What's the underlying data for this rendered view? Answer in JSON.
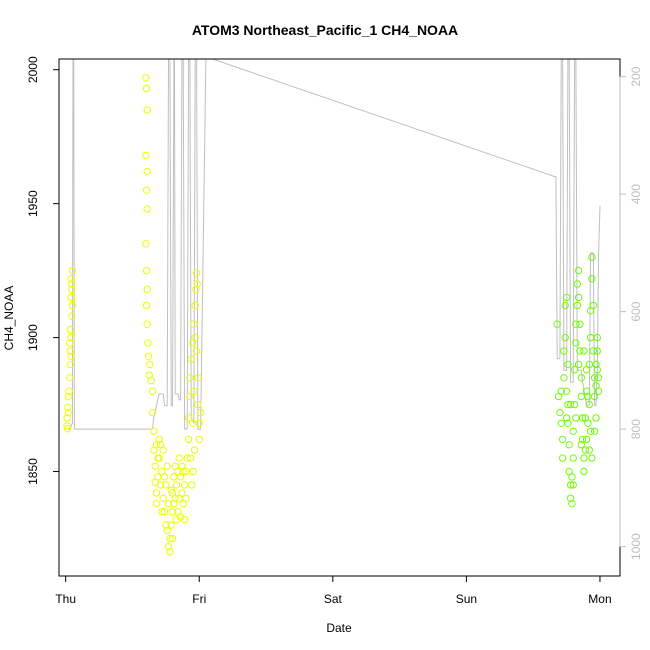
{
  "chart_data": {
    "type": "scatter",
    "title": "ATOM3 Northeast_Pacific_1 CH4_NOAA",
    "xlabel": "Date",
    "ylabel": "CH4_NOAA",
    "x_ticks": [
      "Thu",
      "Fri",
      "Sat",
      "Sun",
      "Mon"
    ],
    "x_tick_days": [
      0,
      1,
      2,
      3,
      4
    ],
    "xlim": [
      -0.05,
      4.15
    ],
    "ylim": [
      1811,
      2004
    ],
    "y_ticks": [
      1850,
      1900,
      1950,
      2000
    ],
    "right_axis": {
      "ticks": [
        200,
        400,
        600,
        800,
        1000
      ],
      "lim": [
        1050,
        170
      ],
      "color": "#bfbfbf"
    },
    "grid": false,
    "legend": "none",
    "series": [
      {
        "marker": "circle-open",
        "color_scale": [
          "#eeff00",
          "#66ff00"
        ],
        "points": [
          [
            0.01,
            1867
          ],
          [
            0.01,
            1870
          ],
          [
            0.015,
            1874
          ],
          [
            0.02,
            1878
          ],
          [
            0.015,
            1866
          ],
          [
            0.02,
            1872
          ],
          [
            0.025,
            1880
          ],
          [
            0.03,
            1885
          ],
          [
            0.035,
            1890
          ],
          [
            0.035,
            1895
          ],
          [
            0.03,
            1898
          ],
          [
            0.04,
            1900
          ],
          [
            0.035,
            1903
          ],
          [
            0.04,
            1915
          ],
          [
            0.045,
            1918
          ],
          [
            0.04,
            1922
          ],
          [
            0.05,
            1925
          ],
          [
            0.045,
            1920
          ],
          [
            0.05,
            1912
          ],
          [
            0.045,
            1908
          ],
          [
            0.04,
            1893
          ],
          [
            0.6,
            1997
          ],
          [
            0.605,
            1993
          ],
          [
            0.61,
            1985
          ],
          [
            0.6,
            1968
          ],
          [
            0.61,
            1962
          ],
          [
            0.605,
            1955
          ],
          [
            0.61,
            1948
          ],
          [
            0.6,
            1935
          ],
          [
            0.605,
            1925
          ],
          [
            0.61,
            1918
          ],
          [
            0.605,
            1912
          ],
          [
            0.61,
            1905
          ],
          [
            0.615,
            1898
          ],
          [
            0.62,
            1893
          ],
          [
            0.63,
            1890
          ],
          [
            0.625,
            1886
          ],
          [
            0.64,
            1884
          ],
          [
            0.65,
            1880
          ],
          [
            0.65,
            1872
          ],
          [
            0.66,
            1865
          ],
          [
            0.66,
            1858
          ],
          [
            0.67,
            1852
          ],
          [
            0.67,
            1846
          ],
          [
            0.68,
            1842
          ],
          [
            0.68,
            1838
          ],
          [
            0.69,
            1848
          ],
          [
            0.7,
            1855
          ],
          [
            0.7,
            1862
          ],
          [
            0.71,
            1845
          ],
          [
            0.72,
            1850
          ],
          [
            0.73,
            1840
          ],
          [
            0.74,
            1835
          ],
          [
            0.75,
            1830
          ],
          [
            0.76,
            1828
          ],
          [
            0.77,
            1822
          ],
          [
            0.78,
            1820
          ],
          [
            0.78,
            1825
          ],
          [
            0.79,
            1830
          ],
          [
            0.8,
            1835
          ],
          [
            0.8,
            1842
          ],
          [
            0.81,
            1848
          ],
          [
            0.82,
            1852
          ],
          [
            0.83,
            1845
          ],
          [
            0.84,
            1850
          ],
          [
            0.85,
            1855
          ],
          [
            0.86,
            1848
          ],
          [
            0.87,
            1842
          ],
          [
            0.88,
            1838
          ],
          [
            0.89,
            1845
          ],
          [
            0.9,
            1850
          ],
          [
            0.91,
            1855
          ],
          [
            0.92,
            1862
          ],
          [
            0.92,
            1870
          ],
          [
            0.93,
            1878
          ],
          [
            0.93,
            1885
          ],
          [
            0.94,
            1892
          ],
          [
            0.95,
            1898
          ],
          [
            0.96,
            1905
          ],
          [
            0.97,
            1912
          ],
          [
            0.975,
            1918
          ],
          [
            0.98,
            1924
          ],
          [
            0.985,
            1920
          ],
          [
            0.97,
            1900
          ],
          [
            0.99,
            1885
          ],
          [
            0.99,
            1875
          ],
          [
            1.0,
            1868
          ],
          [
            1.0,
            1862
          ],
          [
            1.01,
            1872
          ],
          [
            0.965,
            1858
          ],
          [
            0.955,
            1850
          ],
          [
            0.945,
            1845
          ],
          [
            0.935,
            1855
          ],
          [
            0.72,
            1835
          ],
          [
            0.73,
            1858
          ],
          [
            0.75,
            1845
          ],
          [
            0.77,
            1838
          ],
          [
            0.79,
            1843
          ],
          [
            0.81,
            1838
          ],
          [
            0.83,
            1832
          ],
          [
            0.85,
            1840
          ],
          [
            0.87,
            1852
          ],
          [
            0.89,
            1832
          ],
          [
            0.76,
            1852
          ],
          [
            0.74,
            1848
          ],
          [
            0.8,
            1825
          ],
          [
            0.82,
            1840
          ],
          [
            0.84,
            1835
          ],
          [
            0.86,
            1833
          ],
          [
            0.88,
            1850
          ],
          [
            0.9,
            1840
          ],
          [
            0.96,
            1880
          ],
          [
            0.68,
            1860
          ],
          [
            0.69,
            1855
          ],
          [
            0.71,
            1860
          ],
          [
            0.95,
            1868
          ],
          [
            0.98,
            1895
          ],
          [
            3.68,
            1905
          ],
          [
            3.69,
            1878
          ],
          [
            3.7,
            1872
          ],
          [
            3.71,
            1868
          ],
          [
            3.72,
            1862
          ],
          [
            3.72,
            1855
          ],
          [
            3.73,
            1885
          ],
          [
            3.73,
            1895
          ],
          [
            3.74,
            1900
          ],
          [
            3.74,
            1912
          ],
          [
            3.75,
            1915
          ],
          [
            3.75,
            1880
          ],
          [
            3.76,
            1875
          ],
          [
            3.76,
            1868
          ],
          [
            3.77,
            1860
          ],
          [
            3.77,
            1850
          ],
          [
            3.78,
            1845
          ],
          [
            3.78,
            1840
          ],
          [
            3.79,
            1838
          ],
          [
            3.79,
            1848
          ],
          [
            3.8,
            1855
          ],
          [
            3.8,
            1865
          ],
          [
            3.81,
            1875
          ],
          [
            3.81,
            1888
          ],
          [
            3.82,
            1898
          ],
          [
            3.82,
            1905
          ],
          [
            3.83,
            1912
          ],
          [
            3.83,
            1920
          ],
          [
            3.84,
            1925
          ],
          [
            3.84,
            1915
          ],
          [
            3.85,
            1905
          ],
          [
            3.85,
            1895
          ],
          [
            3.86,
            1885
          ],
          [
            3.86,
            1878
          ],
          [
            3.87,
            1870
          ],
          [
            3.87,
            1862
          ],
          [
            3.88,
            1855
          ],
          [
            3.88,
            1850
          ],
          [
            3.89,
            1858
          ],
          [
            3.89,
            1870
          ],
          [
            3.9,
            1880
          ],
          [
            3.9,
            1888
          ],
          [
            3.91,
            1878
          ],
          [
            3.91,
            1868
          ],
          [
            3.92,
            1875
          ],
          [
            3.92,
            1890
          ],
          [
            3.93,
            1900
          ],
          [
            3.93,
            1910
          ],
          [
            3.94,
            1922
          ],
          [
            3.94,
            1930
          ],
          [
            3.95,
            1912
          ],
          [
            3.95,
            1895
          ],
          [
            3.96,
            1885
          ],
          [
            3.96,
            1878
          ],
          [
            3.97,
            1882
          ],
          [
            3.97,
            1890
          ],
          [
            3.98,
            1895
          ],
          [
            3.98,
            1900
          ],
          [
            3.99,
            1885
          ],
          [
            3.99,
            1880
          ],
          [
            3.93,
            1865
          ],
          [
            3.94,
            1855
          ],
          [
            3.75,
            1870
          ],
          [
            3.71,
            1880
          ],
          [
            3.76,
            1890
          ],
          [
            3.78,
            1875
          ],
          [
            3.8,
            1845
          ],
          [
            3.82,
            1870
          ],
          [
            3.84,
            1890
          ],
          [
            3.86,
            1860
          ],
          [
            3.88,
            1895
          ],
          [
            3.9,
            1862
          ],
          [
            3.92,
            1858
          ],
          [
            3.96,
            1865
          ],
          [
            3.97,
            1870
          ],
          [
            3.98,
            1888
          ]
        ]
      }
    ],
    "overlay_line": {
      "color": "#bfbfbf",
      "axis": "right",
      "points": [
        [
          0.0,
          800
        ],
        [
          0.03,
          800
        ],
        [
          0.05,
          790
        ],
        [
          0.055,
          170
        ],
        [
          0.06,
          170
        ],
        [
          0.065,
          800
        ],
        [
          0.12,
          800
        ],
        [
          0.6,
          800
        ],
        [
          0.65,
          800
        ],
        [
          0.66,
          780
        ],
        [
          0.7,
          740
        ],
        [
          0.73,
          740
        ],
        [
          0.74,
          760
        ],
        [
          0.75,
          760
        ],
        [
          0.76,
          760
        ],
        [
          0.77,
          170
        ],
        [
          0.78,
          170
        ],
        [
          0.79,
          760
        ],
        [
          0.8,
          760
        ],
        [
          0.81,
          170
        ],
        [
          0.815,
          170
        ],
        [
          0.82,
          740
        ],
        [
          0.84,
          740
        ],
        [
          0.85,
          750
        ],
        [
          0.86,
          750
        ],
        [
          0.87,
          170
        ],
        [
          0.88,
          170
        ],
        [
          0.89,
          800
        ],
        [
          0.91,
          800
        ],
        [
          0.92,
          170
        ],
        [
          0.93,
          170
        ],
        [
          0.94,
          780
        ],
        [
          0.96,
          790
        ],
        [
          0.97,
          170
        ],
        [
          0.98,
          170
        ],
        [
          0.99,
          800
        ],
        [
          1.01,
          800
        ],
        [
          1.05,
          170
        ],
        [
          1.1,
          170
        ],
        [
          3.66,
          370
        ],
        [
          3.67,
          370
        ],
        [
          3.68,
          680
        ],
        [
          3.7,
          680
        ],
        [
          3.71,
          170
        ],
        [
          3.72,
          170
        ],
        [
          3.73,
          700
        ],
        [
          3.75,
          700
        ],
        [
          3.76,
          170
        ],
        [
          3.77,
          170
        ],
        [
          3.78,
          720
        ],
        [
          3.8,
          720
        ],
        [
          3.81,
          170
        ],
        [
          3.82,
          170
        ],
        [
          3.83,
          700
        ],
        [
          3.86,
          700
        ],
        [
          3.87,
          720
        ],
        [
          3.9,
          760
        ],
        [
          3.92,
          760
        ],
        [
          3.93,
          500
        ],
        [
          3.95,
          500
        ],
        [
          3.96,
          760
        ],
        [
          3.97,
          760
        ],
        [
          3.98,
          700
        ],
        [
          3.99,
          500
        ],
        [
          4.0,
          420
        ]
      ]
    }
  }
}
